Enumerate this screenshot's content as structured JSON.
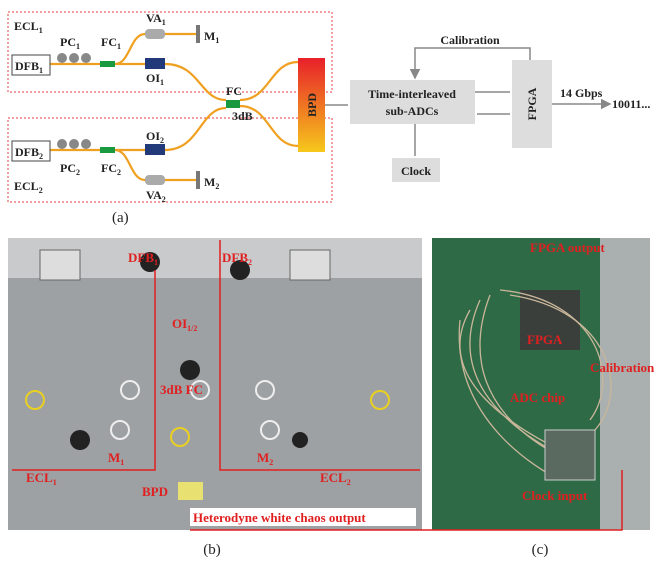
{
  "panel_a": {
    "ecl1": {
      "text": "ECL",
      "sub": "1"
    },
    "dfb1": {
      "text": "DFB",
      "sub": "1"
    },
    "pc1": {
      "text": "PC",
      "sub": "1"
    },
    "fc1": {
      "text": "FC",
      "sub": "1"
    },
    "va1": {
      "text": "VA",
      "sub": "1"
    },
    "m1": {
      "text": "M",
      "sub": "1"
    },
    "oi1": {
      "text": "OI",
      "sub": "1"
    },
    "ecl2": {
      "text": "ECL",
      "sub": "2"
    },
    "dfb2": {
      "text": "DFB",
      "sub": "2"
    },
    "pc2": {
      "text": "PC",
      "sub": "2"
    },
    "fc2": {
      "text": "FC",
      "sub": "2"
    },
    "va2": {
      "text": "VA",
      "sub": "2"
    },
    "m2": {
      "text": "M",
      "sub": "2"
    },
    "oi2": {
      "text": "OI",
      "sub": "2"
    },
    "fc": "FC",
    "fc_ratio": "3dB",
    "bpd": "BPD",
    "adc": [
      "Time-interleaved",
      "sub-ADCs"
    ],
    "calibration": "Calibration",
    "fpga": "FPGA",
    "rate": "14 Gbps",
    "bits": "10011...",
    "clock": "Clock",
    "caption": "(a)"
  },
  "panel_b": {
    "dfb1": {
      "text": "DFB",
      "sub": "1"
    },
    "dfb2": {
      "text": "DFB",
      "sub": "2"
    },
    "oi": {
      "text": "OI",
      "sub": "1/2"
    },
    "coupler": "3dB FC",
    "ecl1": {
      "text": "ECL",
      "sub": "1"
    },
    "m1": {
      "text": "M",
      "sub": "1"
    },
    "m2": {
      "text": "M",
      "sub": "2"
    },
    "ecl2": {
      "text": "ECL",
      "sub": "2"
    },
    "bpd": "BPD",
    "output": "Heterodyne white chaos output",
    "caption": "(b)"
  },
  "panel_c": {
    "fpga_output": "FPGA output",
    "fpga": "FPGA",
    "calibration": "Calibration",
    "adc_chip": "ADC chip",
    "clock_input": "Clock input",
    "caption": "(c)"
  }
}
